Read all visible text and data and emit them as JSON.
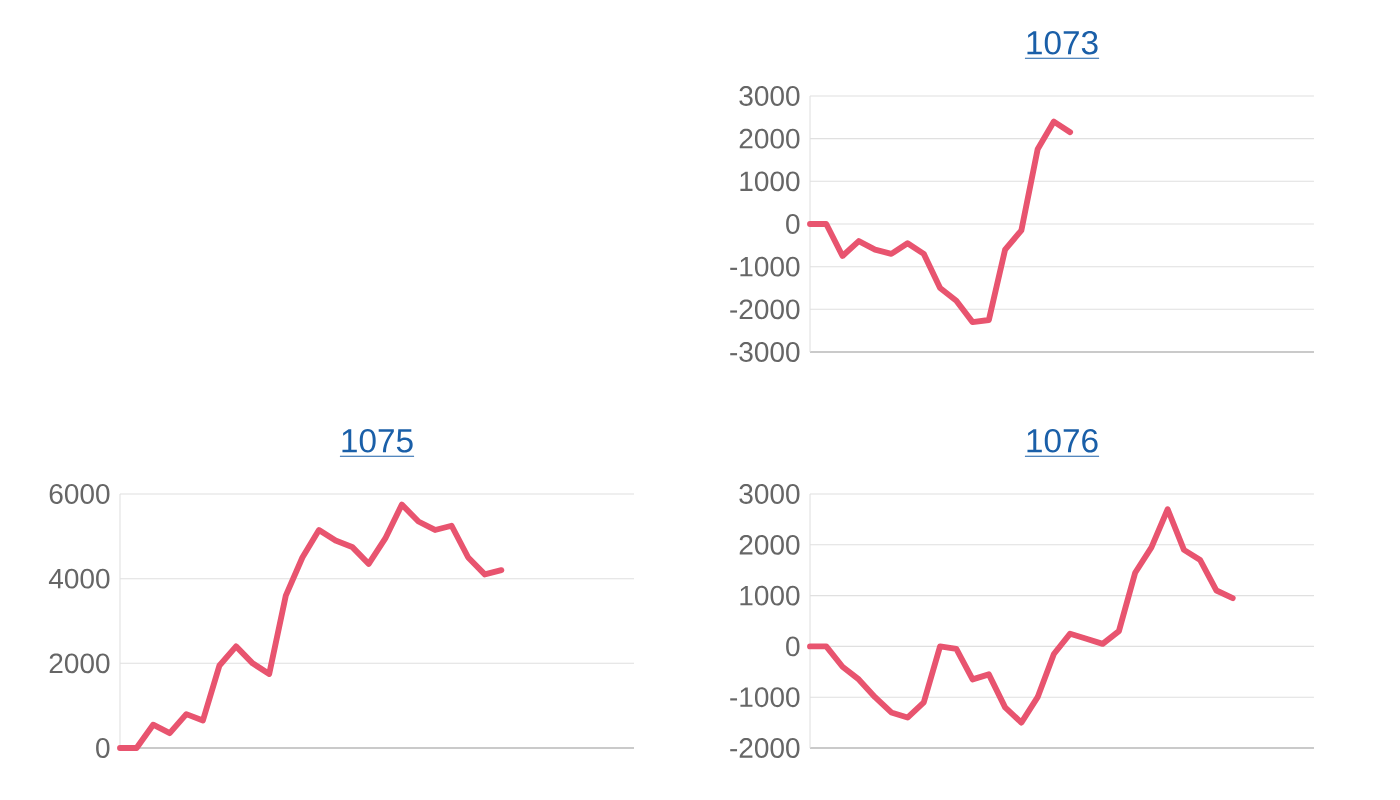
{
  "chart_data": [
    {
      "type": "line",
      "title": "1073",
      "categories": [
        null,
        null,
        null,
        null,
        null,
        null,
        null,
        null,
        null,
        null,
        null,
        null,
        null,
        null,
        null,
        null,
        null,
        null,
        null,
        null,
        null,
        null,
        null,
        null,
        null,
        null,
        null,
        null,
        null,
        null,
        null,
        null
      ],
      "series": [
        {
          "color": "#e8546f",
          "values": [
            0,
            0,
            -750,
            -400,
            -600,
            -700,
            -450,
            -700,
            -1500,
            -1800,
            -2300,
            -2250,
            -600,
            -150,
            1750,
            2400,
            2150,
            null,
            null,
            null,
            null,
            null,
            null,
            null,
            null,
            null,
            null,
            null,
            null,
            null,
            null,
            null
          ]
        }
      ],
      "ylim": [
        -3000,
        3000
      ],
      "yticks": [
        -3000,
        -2000,
        -1000,
        0,
        1000,
        2000,
        3000
      ],
      "grid": "y",
      "tick_labels": "y",
      "marker": "none"
    },
    {
      "type": "line",
      "title": "1075",
      "categories": [
        null,
        null,
        null,
        null,
        null,
        null,
        null,
        null,
        null,
        null,
        null,
        null,
        null,
        null,
        null,
        null,
        null,
        null,
        null,
        null,
        null,
        null,
        null,
        null,
        null,
        null,
        null,
        null,
        null,
        null,
        null,
        null
      ],
      "series": [
        {
          "color": "#e8546f",
          "values": [
            0,
            0,
            550,
            350,
            800,
            650,
            1950,
            2400,
            2000,
            1750,
            3600,
            4500,
            5150,
            4900,
            4750,
            4350,
            4950,
            5750,
            5350,
            5150,
            5250,
            4500,
            4100,
            4200,
            null,
            null,
            null,
            null,
            null,
            null,
            null,
            null
          ]
        }
      ],
      "ylim": [
        0,
        6000
      ],
      "yticks": [
        0,
        2000,
        4000,
        6000
      ],
      "grid": "y",
      "tick_labels": "y",
      "marker": "none"
    },
    {
      "type": "line",
      "title": "1076",
      "categories": [
        null,
        null,
        null,
        null,
        null,
        null,
        null,
        null,
        null,
        null,
        null,
        null,
        null,
        null,
        null,
        null,
        null,
        null,
        null,
        null,
        null,
        null,
        null,
        null,
        null,
        null,
        null,
        null,
        null,
        null,
        null,
        null
      ],
      "series": [
        {
          "color": "#e8546f",
          "values": [
            0,
            0,
            -400,
            -650,
            -1000,
            -1300,
            -1400,
            -1100,
            0,
            -50,
            -650,
            -550,
            -1200,
            -1500,
            -1000,
            -150,
            250,
            150,
            50,
            300,
            1450,
            1950,
            2700,
            1900,
            1700,
            1100,
            950,
            null,
            null,
            null,
            null,
            null
          ]
        }
      ],
      "ylim": [
        -2000,
        3000
      ],
      "yticks": [
        -2000,
        -1000,
        0,
        1000,
        2000,
        3000
      ],
      "grid": "y",
      "tick_labels": "y",
      "marker": "none"
    }
  ]
}
